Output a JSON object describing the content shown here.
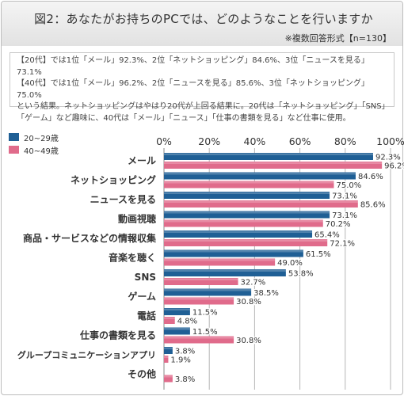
{
  "header": {
    "title": "図2：あなたがお持ちのPCでは、どのようなことを行いますか",
    "note": "※複数回答形式【n=130】"
  },
  "summary": {
    "lines": [
      "【20代】では1位「メール」92.3%、2位「ネットショッピング」84.6%、3位「ニュースを見る」73.1%",
      "【40代】では1位「メール」96.2%、2位「ニュースを見る」85.6%、3位「ネットショッピング」75.0%",
      "という結果。ネットショッピングはやはり20代が上回る結果に。20代は「ネットショッピング」「SNS」",
      "「ゲーム」など趣味に、40代は「メール」「ニュース」「仕事の書類を見る」など仕事に使用。"
    ]
  },
  "colors": {
    "series_20s": "#1f5f95",
    "series_40s": "#e06b8b",
    "grid": "#b5b5b5"
  },
  "chart_data": {
    "type": "bar",
    "orientation": "horizontal",
    "categories": [
      "メール",
      "ネットショッピング",
      "ニュースを見る",
      "動画視聴",
      "商品・サービスなどの情報収集",
      "音楽を聴く",
      "SNS",
      "ゲーム",
      "電話",
      "仕事の書類を見る",
      "グループコミュニケーションアプリ",
      "その他"
    ],
    "series": [
      {
        "name": "20~29歳",
        "values": [
          92.3,
          84.6,
          73.1,
          73.1,
          65.4,
          61.5,
          53.8,
          38.5,
          11.5,
          11.5,
          3.8,
          0
        ]
      },
      {
        "name": "40~49歳",
        "values": [
          96.2,
          75.0,
          85.6,
          70.2,
          72.1,
          49.0,
          32.7,
          30.8,
          4.8,
          30.8,
          1.9,
          3.8
        ]
      }
    ],
    "value_labels": [
      [
        "92.3%",
        "84.6%",
        "73.1%",
        "73.1%",
        "65.4%",
        "61.5%",
        "53.8%",
        "38.5%",
        "11.5%",
        "11.5%",
        "3.8%",
        ""
      ],
      [
        "96.2%",
        "75.0%",
        "85.6%",
        "70.2%",
        "72.1%",
        "49.0%",
        "32.7%",
        "30.8%",
        "4.8%",
        "30.8%",
        "1.9%",
        "3.8%"
      ]
    ],
    "xlim": [
      0,
      100
    ],
    "xticks": [
      0,
      20,
      40,
      60,
      80,
      100
    ],
    "xtick_labels": [
      "0%",
      "20%",
      "40%",
      "60%",
      "80%",
      "100%"
    ],
    "grid": true,
    "legend": "top-left"
  }
}
